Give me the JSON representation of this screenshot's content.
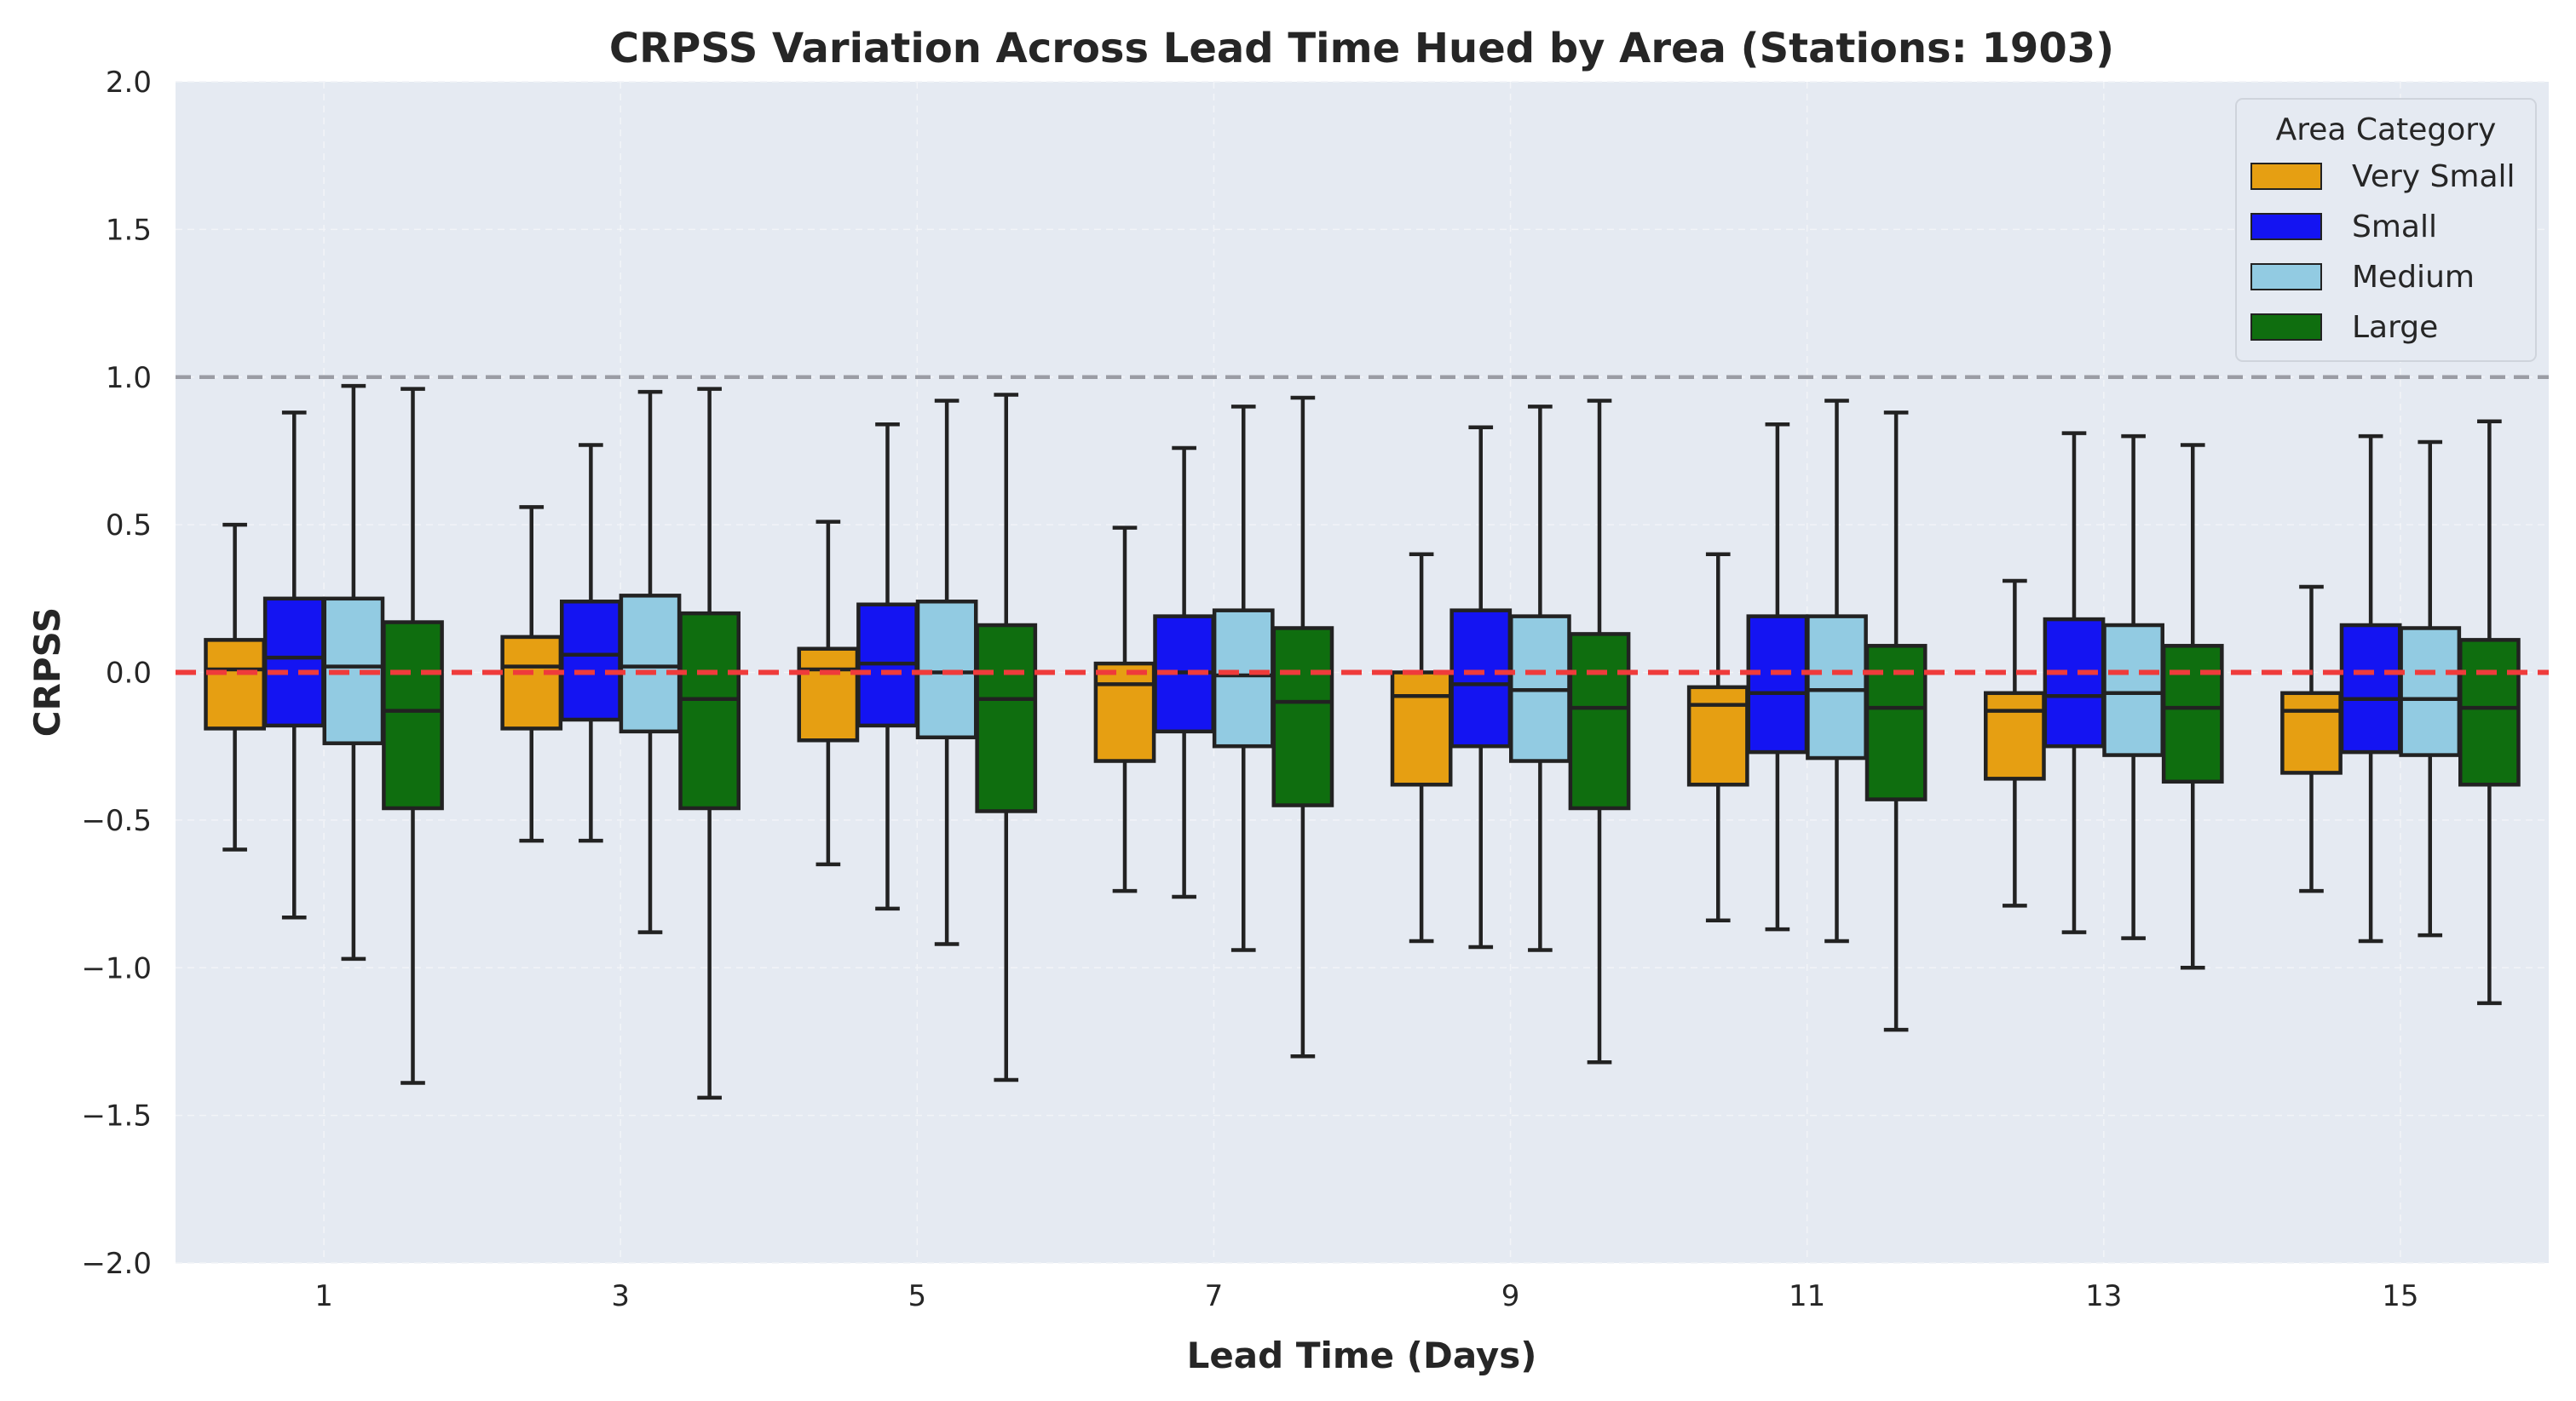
{
  "chart_data": {
    "type": "box",
    "title": "CRPSS Variation Across Lead Time Hued by Area (Stations: 1903)",
    "xlabel": "Lead Time (Days)",
    "ylabel": "CRPSS",
    "ylim": [
      -2.0,
      2.0
    ],
    "yticks": [
      -2.0,
      -1.5,
      -1.0,
      -0.5,
      0.0,
      0.5,
      1.0,
      1.5,
      2.0
    ],
    "ytick_labels": [
      "−2.0",
      "−1.5",
      "−1.0",
      "−0.5",
      "0.0",
      "0.5",
      "1.0",
      "1.5",
      "2.0"
    ],
    "categories": [
      "1",
      "3",
      "5",
      "7",
      "9",
      "11",
      "13",
      "15"
    ],
    "legend_title": "Area Category",
    "legend_position": "top-right",
    "grid": true,
    "reference_lines": [
      {
        "y": 0.0,
        "style": "dashed",
        "color": "#ef3b3b"
      },
      {
        "y": 1.0,
        "style": "dashed",
        "color": "#9a9ca4"
      }
    ],
    "series": [
      {
        "name": "Very Small",
        "color": "#e69f12",
        "boxes": [
          {
            "whislo": -0.6,
            "q1": -0.19,
            "med": 0.01,
            "q3": 0.11,
            "whishi": 0.5
          },
          {
            "whislo": -0.57,
            "q1": -0.19,
            "med": 0.02,
            "q3": 0.12,
            "whishi": 0.56
          },
          {
            "whislo": -0.65,
            "q1": -0.23,
            "med": 0.01,
            "q3": 0.08,
            "whishi": 0.51
          },
          {
            "whislo": -0.74,
            "q1": -0.3,
            "med": -0.04,
            "q3": 0.03,
            "whishi": 0.49
          },
          {
            "whislo": -0.91,
            "q1": -0.38,
            "med": -0.08,
            "q3": 0.0,
            "whishi": 0.4
          },
          {
            "whislo": -0.84,
            "q1": -0.38,
            "med": -0.11,
            "q3": -0.05,
            "whishi": 0.4
          },
          {
            "whislo": -0.79,
            "q1": -0.36,
            "med": -0.13,
            "q3": -0.07,
            "whishi": 0.31
          },
          {
            "whislo": -0.74,
            "q1": -0.34,
            "med": -0.13,
            "q3": -0.07,
            "whishi": 0.29
          }
        ]
      },
      {
        "name": "Small",
        "color": "#1414f2",
        "boxes": [
          {
            "whislo": -0.83,
            "q1": -0.18,
            "med": 0.05,
            "q3": 0.25,
            "whishi": 0.88
          },
          {
            "whislo": -0.57,
            "q1": -0.16,
            "med": 0.06,
            "q3": 0.24,
            "whishi": 0.77
          },
          {
            "whislo": -0.8,
            "q1": -0.18,
            "med": 0.03,
            "q3": 0.23,
            "whishi": 0.84
          },
          {
            "whislo": -0.76,
            "q1": -0.2,
            "med": 0.0,
            "q3": 0.19,
            "whishi": 0.76
          },
          {
            "whislo": -0.93,
            "q1": -0.25,
            "med": -0.04,
            "q3": 0.21,
            "whishi": 0.83
          },
          {
            "whislo": -0.87,
            "q1": -0.27,
            "med": -0.07,
            "q3": 0.19,
            "whishi": 0.84
          },
          {
            "whislo": -0.88,
            "q1": -0.25,
            "med": -0.08,
            "q3": 0.18,
            "whishi": 0.81
          },
          {
            "whislo": -0.91,
            "q1": -0.27,
            "med": -0.09,
            "q3": 0.16,
            "whishi": 0.8
          }
        ]
      },
      {
        "name": "Medium",
        "color": "#92cbe2",
        "boxes": [
          {
            "whislo": -0.97,
            "q1": -0.24,
            "med": 0.02,
            "q3": 0.25,
            "whishi": 0.97
          },
          {
            "whislo": -0.88,
            "q1": -0.2,
            "med": 0.02,
            "q3": 0.26,
            "whishi": 0.95
          },
          {
            "whislo": -0.92,
            "q1": -0.22,
            "med": 0.0,
            "q3": 0.24,
            "whishi": 0.92
          },
          {
            "whislo": -0.94,
            "q1": -0.25,
            "med": -0.01,
            "q3": 0.21,
            "whishi": 0.9
          },
          {
            "whislo": -0.94,
            "q1": -0.3,
            "med": -0.06,
            "q3": 0.19,
            "whishi": 0.9
          },
          {
            "whislo": -0.91,
            "q1": -0.29,
            "med": -0.06,
            "q3": 0.19,
            "whishi": 0.92
          },
          {
            "whislo": -0.9,
            "q1": -0.28,
            "med": -0.07,
            "q3": 0.16,
            "whishi": 0.8
          },
          {
            "whislo": -0.89,
            "q1": -0.28,
            "med": -0.09,
            "q3": 0.15,
            "whishi": 0.78
          }
        ]
      },
      {
        "name": "Large",
        "color": "#0f6e0f",
        "boxes": [
          {
            "whislo": -1.39,
            "q1": -0.46,
            "med": -0.13,
            "q3": 0.17,
            "whishi": 0.96
          },
          {
            "whislo": -1.44,
            "q1": -0.46,
            "med": -0.09,
            "q3": 0.2,
            "whishi": 0.96
          },
          {
            "whislo": -1.38,
            "q1": -0.47,
            "med": -0.09,
            "q3": 0.16,
            "whishi": 0.94
          },
          {
            "whislo": -1.3,
            "q1": -0.45,
            "med": -0.1,
            "q3": 0.15,
            "whishi": 0.93
          },
          {
            "whislo": -1.32,
            "q1": -0.46,
            "med": -0.12,
            "q3": 0.13,
            "whishi": 0.92
          },
          {
            "whislo": -1.21,
            "q1": -0.43,
            "med": -0.12,
            "q3": 0.09,
            "whishi": 0.88
          },
          {
            "whislo": -1.0,
            "q1": -0.37,
            "med": -0.12,
            "q3": 0.09,
            "whishi": 0.77
          },
          {
            "whislo": -1.12,
            "q1": -0.38,
            "med": -0.12,
            "q3": 0.11,
            "whishi": 0.85
          }
        ]
      }
    ],
    "colors": {
      "plot_background": "#e5eaf2",
      "grid": "#f2f4f8",
      "box_edge": "#222222"
    }
  }
}
